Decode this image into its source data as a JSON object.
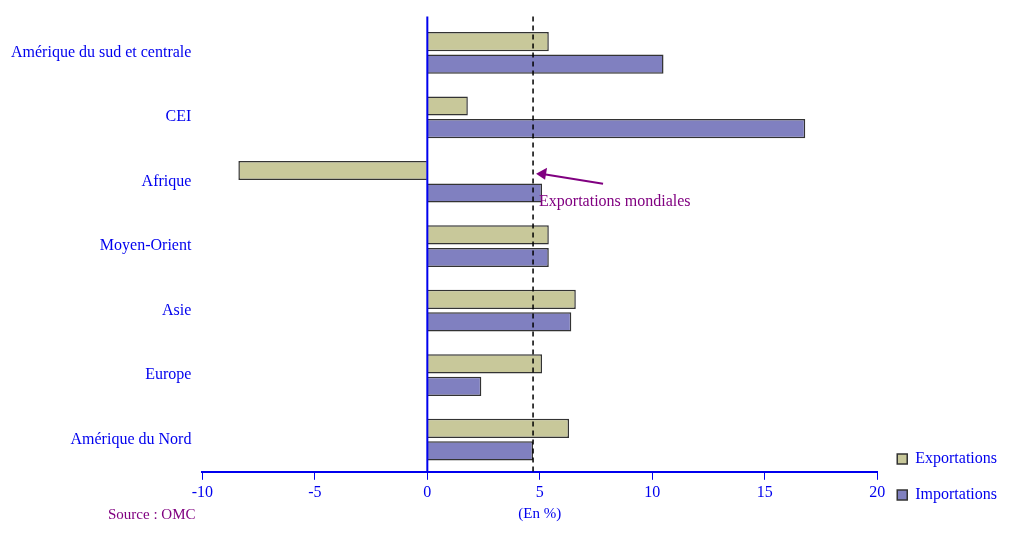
{
  "chart_data": {
    "type": "bar",
    "orientation": "horizontal",
    "xlabel": "(En %)",
    "categories": [
      "Amérique du sud et centrale",
      "CEI",
      "Afrique",
      "Moyen-Orient",
      "Asie",
      "Europe",
      "Amérique du Nord"
    ],
    "series": [
      {
        "name": "Exportations",
        "color": "#c8c89a",
        "values": [
          5.4,
          1.8,
          -8.4,
          5.4,
          6.6,
          5.1,
          6.3
        ]
      },
      {
        "name": "Importations",
        "color": "#8080c0",
        "values": [
          10.5,
          16.8,
          5.1,
          5.4,
          6.4,
          2.4,
          4.7
        ]
      }
    ],
    "xlim": [
      -10,
      20
    ],
    "xticks": [
      -10,
      -5,
      0,
      5,
      10,
      15,
      20
    ],
    "ref_lines": [
      {
        "axis": "x",
        "value": 0,
        "color": "#0000ee",
        "line_style": "solid"
      },
      {
        "axis": "x",
        "value": 4.7,
        "label": "Exportations mondiales",
        "color": "#000000",
        "line_style": "dashed"
      }
    ],
    "annotations": [
      "Source : OMC"
    ],
    "grid": false,
    "legend": "bottom right"
  }
}
